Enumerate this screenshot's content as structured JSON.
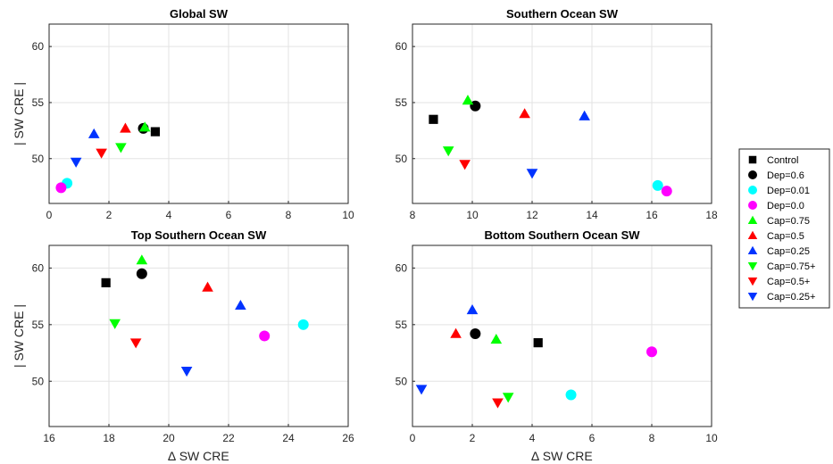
{
  "colors": {
    "Control": "#000000",
    "Dep=0.6": "#000000",
    "Dep=0.01": "#00ffff",
    "Dep=0.0": "#ff00ff",
    "Cap=0.75": "#00ff00",
    "Cap=0.5": "#ff0000",
    "Cap=0.25": "#0033ff",
    "Cap=0.75+": "#00ff00",
    "Cap=0.5+": "#ff0000",
    "Cap=0.25+": "#0033ff"
  },
  "markers": {
    "Control": "square",
    "Dep=0.6": "circle",
    "Dep=0.01": "circle",
    "Dep=0.0": "circle",
    "Cap=0.75": "triangle-up",
    "Cap=0.5": "triangle-up",
    "Cap=0.25": "triangle-up",
    "Cap=0.75+": "triangle-down",
    "Cap=0.5+": "triangle-down",
    "Cap=0.25+": "triangle-down"
  },
  "legend": {
    "placement": "right",
    "entries": [
      "Control",
      "Dep=0.6",
      "Dep=0.01",
      "Dep=0.0",
      "Cap=0.75",
      "Cap=0.5",
      "Cap=0.25",
      "Cap=0.75+",
      "Cap=0.5+",
      "Cap=0.25+"
    ]
  },
  "chart_data": [
    {
      "type": "scatter",
      "title": "Global SW",
      "xlabel": "",
      "ylabel": "| SW CRE |",
      "xlim": [
        0,
        10
      ],
      "ylim": [
        46,
        62
      ],
      "xticks": [
        0,
        2,
        4,
        6,
        8,
        10
      ],
      "yticks": [
        50,
        55,
        60
      ],
      "grid": true,
      "points": [
        {
          "series": "Control",
          "x": 3.55,
          "y": 52.4
        },
        {
          "series": "Dep=0.6",
          "x": 3.15,
          "y": 52.7
        },
        {
          "series": "Dep=0.01",
          "x": 0.6,
          "y": 47.8
        },
        {
          "series": "Dep=0.0",
          "x": 0.4,
          "y": 47.4
        },
        {
          "series": "Cap=0.75",
          "x": 3.2,
          "y": 52.8
        },
        {
          "series": "Cap=0.5",
          "x": 2.55,
          "y": 52.7
        },
        {
          "series": "Cap=0.25",
          "x": 1.5,
          "y": 52.2
        },
        {
          "series": "Cap=0.75+",
          "x": 2.4,
          "y": 51.0
        },
        {
          "series": "Cap=0.5+",
          "x": 1.75,
          "y": 50.5
        },
        {
          "series": "Cap=0.25+",
          "x": 0.9,
          "y": 49.7
        }
      ]
    },
    {
      "type": "scatter",
      "title": "Southern Ocean SW",
      "xlabel": "",
      "ylabel": "",
      "xlim": [
        8,
        18
      ],
      "ylim": [
        46,
        62
      ],
      "xticks": [
        8,
        10,
        12,
        14,
        16,
        18
      ],
      "yticks": [
        50,
        55,
        60
      ],
      "grid": true,
      "points": [
        {
          "series": "Control",
          "x": 8.7,
          "y": 53.5
        },
        {
          "series": "Dep=0.6",
          "x": 10.1,
          "y": 54.7
        },
        {
          "series": "Dep=0.01",
          "x": 16.2,
          "y": 47.6
        },
        {
          "series": "Dep=0.0",
          "x": 16.5,
          "y": 47.1
        },
        {
          "series": "Cap=0.75",
          "x": 9.85,
          "y": 55.2
        },
        {
          "series": "Cap=0.5",
          "x": 11.75,
          "y": 54.0
        },
        {
          "series": "Cap=0.25",
          "x": 13.75,
          "y": 53.8
        },
        {
          "series": "Cap=0.75+",
          "x": 9.2,
          "y": 50.7
        },
        {
          "series": "Cap=0.5+",
          "x": 9.75,
          "y": 49.5
        },
        {
          "series": "Cap=0.25+",
          "x": 12.0,
          "y": 48.7
        }
      ]
    },
    {
      "type": "scatter",
      "title": "Top Southern Ocean SW",
      "xlabel": "∆ SW CRE",
      "ylabel": "| SW CRE |",
      "xlim": [
        16,
        26
      ],
      "ylim": [
        46,
        62
      ],
      "xticks": [
        16,
        18,
        20,
        22,
        24,
        26
      ],
      "yticks": [
        50,
        55,
        60
      ],
      "grid": true,
      "points": [
        {
          "series": "Control",
          "x": 17.9,
          "y": 58.7
        },
        {
          "series": "Dep=0.6",
          "x": 19.1,
          "y": 59.5
        },
        {
          "series": "Dep=0.01",
          "x": 24.5,
          "y": 55.0
        },
        {
          "series": "Dep=0.0",
          "x": 23.2,
          "y": 54.0
        },
        {
          "series": "Cap=0.75",
          "x": 19.1,
          "y": 60.7
        },
        {
          "series": "Cap=0.5",
          "x": 21.3,
          "y": 58.3
        },
        {
          "series": "Cap=0.25",
          "x": 22.4,
          "y": 56.7
        },
        {
          "series": "Cap=0.75+",
          "x": 18.2,
          "y": 55.1
        },
        {
          "series": "Cap=0.5+",
          "x": 18.9,
          "y": 53.4
        },
        {
          "series": "Cap=0.25+",
          "x": 20.6,
          "y": 50.9
        }
      ]
    },
    {
      "type": "scatter",
      "title": "Bottom Southern Ocean SW",
      "xlabel": "∆ SW CRE",
      "ylabel": "",
      "xlim": [
        0,
        10
      ],
      "ylim": [
        46,
        62
      ],
      "xticks": [
        0,
        2,
        4,
        6,
        8,
        10
      ],
      "yticks": [
        50,
        55,
        60
      ],
      "grid": true,
      "points": [
        {
          "series": "Control",
          "x": 4.2,
          "y": 53.4
        },
        {
          "series": "Dep=0.6",
          "x": 2.1,
          "y": 54.2
        },
        {
          "series": "Dep=0.01",
          "x": 5.3,
          "y": 48.8
        },
        {
          "series": "Dep=0.0",
          "x": 8.0,
          "y": 52.6
        },
        {
          "series": "Cap=0.75",
          "x": 2.8,
          "y": 53.7
        },
        {
          "series": "Cap=0.5",
          "x": 1.45,
          "y": 54.2
        },
        {
          "series": "Cap=0.25",
          "x": 2.0,
          "y": 56.3
        },
        {
          "series": "Cap=0.75+",
          "x": 3.2,
          "y": 48.6
        },
        {
          "series": "Cap=0.5+",
          "x": 2.85,
          "y": 48.1
        },
        {
          "series": "Cap=0.25+",
          "x": 0.3,
          "y": 49.3
        }
      ]
    }
  ]
}
